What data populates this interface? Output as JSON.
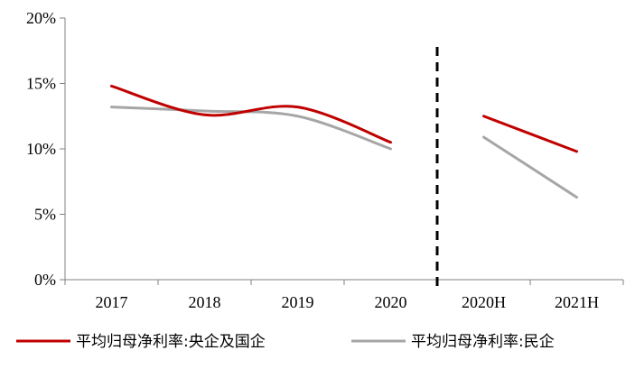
{
  "chart_data": {
    "type": "line",
    "categories": [
      "2017",
      "2018",
      "2019",
      "2020",
      "2020H",
      "2021H"
    ],
    "ylim": [
      0,
      20
    ],
    "y_ticks": [
      0,
      5,
      10,
      15,
      20
    ],
    "y_tick_labels": [
      "0%",
      "5%",
      "10%",
      "15%",
      "20%"
    ],
    "divider_after_category": "2020",
    "legend_position": "bottom",
    "series": [
      {
        "name": "平均归母净利率:央企及国企",
        "color": "#c00000",
        "values": [
          14.8,
          12.6,
          13.2,
          10.5,
          12.5,
          9.8
        ]
      },
      {
        "name": "平均归母净利率:民企",
        "color": "#a6a6a6",
        "values": [
          13.2,
          12.9,
          12.5,
          10.0,
          10.9,
          6.3
        ]
      }
    ]
  }
}
